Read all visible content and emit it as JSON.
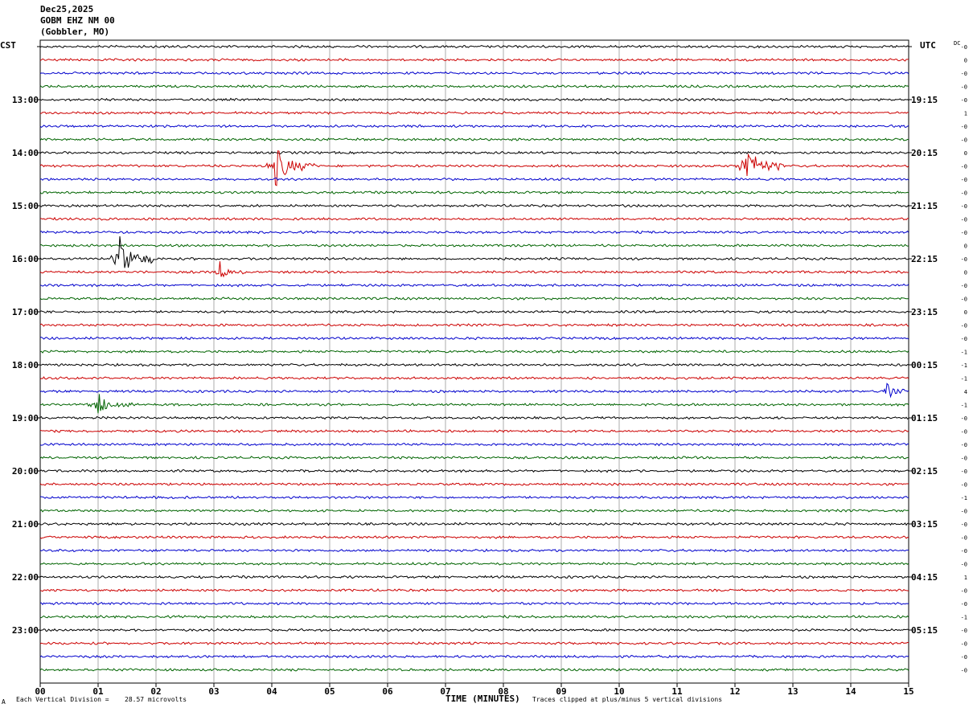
{
  "header": {
    "date": "Dec25,2025",
    "station": "GOBM EHZ NM 00",
    "location": "(Gobbler, MO)"
  },
  "left_axis_label": "CST",
  "right_axis_label": "UTC",
  "dc_label": "DC",
  "footer": {
    "vertical_division_label": "Each Vertical Division =",
    "vertical_division_value": "28.57 microvolts",
    "clip_note": "Traces clipped at plus/minus 5 vertical divisions",
    "corner_mark": "A"
  },
  "chart_data": {
    "type": "helicorder",
    "xlabel": "TIME (MINUTES)",
    "xlim": [
      0,
      15
    ],
    "x_ticks": [
      "00",
      "01",
      "02",
      "03",
      "04",
      "05",
      "06",
      "07",
      "08",
      "09",
      "10",
      "11",
      "12",
      "13",
      "14",
      "15"
    ],
    "trace_count": 48,
    "trace_minutes": 15,
    "trace_colors": [
      "#000000",
      "#cc0000",
      "#0000cc",
      "#006400"
    ],
    "left_time_labels": [
      {
        "trace": 4,
        "label": "13:00"
      },
      {
        "trace": 8,
        "label": "14:00"
      },
      {
        "trace": 12,
        "label": "15:00"
      },
      {
        "trace": 16,
        "label": "16:00"
      },
      {
        "trace": 20,
        "label": "17:00"
      },
      {
        "trace": 24,
        "label": "18:00"
      },
      {
        "trace": 28,
        "label": "19:00"
      },
      {
        "trace": 32,
        "label": "20:00"
      },
      {
        "trace": 36,
        "label": "21:00"
      },
      {
        "trace": 40,
        "label": "22:00"
      },
      {
        "trace": 44,
        "label": "23:00"
      }
    ],
    "right_time_labels": [
      {
        "trace": 4,
        "label": "19:15"
      },
      {
        "trace": 8,
        "label": "20:15"
      },
      {
        "trace": 12,
        "label": "21:15"
      },
      {
        "trace": 16,
        "label": "22:15"
      },
      {
        "trace": 20,
        "label": "23:15"
      },
      {
        "trace": 24,
        "label": "00:15"
      },
      {
        "trace": 28,
        "label": "01:15"
      },
      {
        "trace": 32,
        "label": "02:15"
      },
      {
        "trace": 36,
        "label": "03:15"
      },
      {
        "trace": 40,
        "label": "04:15"
      },
      {
        "trace": 44,
        "label": "05:15"
      }
    ],
    "dc_offsets": [
      "-0",
      "0",
      "-0",
      "-0",
      "-0",
      "1",
      "-0",
      "-0",
      "0",
      "-0",
      "-0",
      "-0",
      "-0",
      "-0",
      "-0",
      "0",
      "-0",
      "0",
      "-0",
      "-0",
      "0",
      "-0",
      "-0",
      "-1",
      "-1",
      "-1",
      "4",
      "-1",
      "-0",
      "-0",
      "-0",
      "-0",
      "-0",
      "-0",
      "-1",
      "-0",
      "-0",
      "-0",
      "-0",
      "-0",
      "1",
      "-0",
      "-0",
      "-1",
      "-0",
      "-0",
      "-0",
      "-0"
    ],
    "events": [
      {
        "trace": 9,
        "minute": 4.05,
        "duration": 0.7,
        "amplitude": 4.5
      },
      {
        "trace": 9,
        "minute": 12.15,
        "duration": 0.7,
        "amplitude": 4.8
      },
      {
        "trace": 16,
        "minute": 1.35,
        "duration": 0.6,
        "amplitude": 5.0
      },
      {
        "trace": 17,
        "minute": 3.1,
        "duration": 0.4,
        "amplitude": 2.0
      },
      {
        "trace": 26,
        "minute": 14.6,
        "duration": 0.4,
        "amplitude": 2.2
      },
      {
        "trace": 27,
        "minute": 1.0,
        "duration": 0.6,
        "amplitude": 2.6
      }
    ]
  }
}
